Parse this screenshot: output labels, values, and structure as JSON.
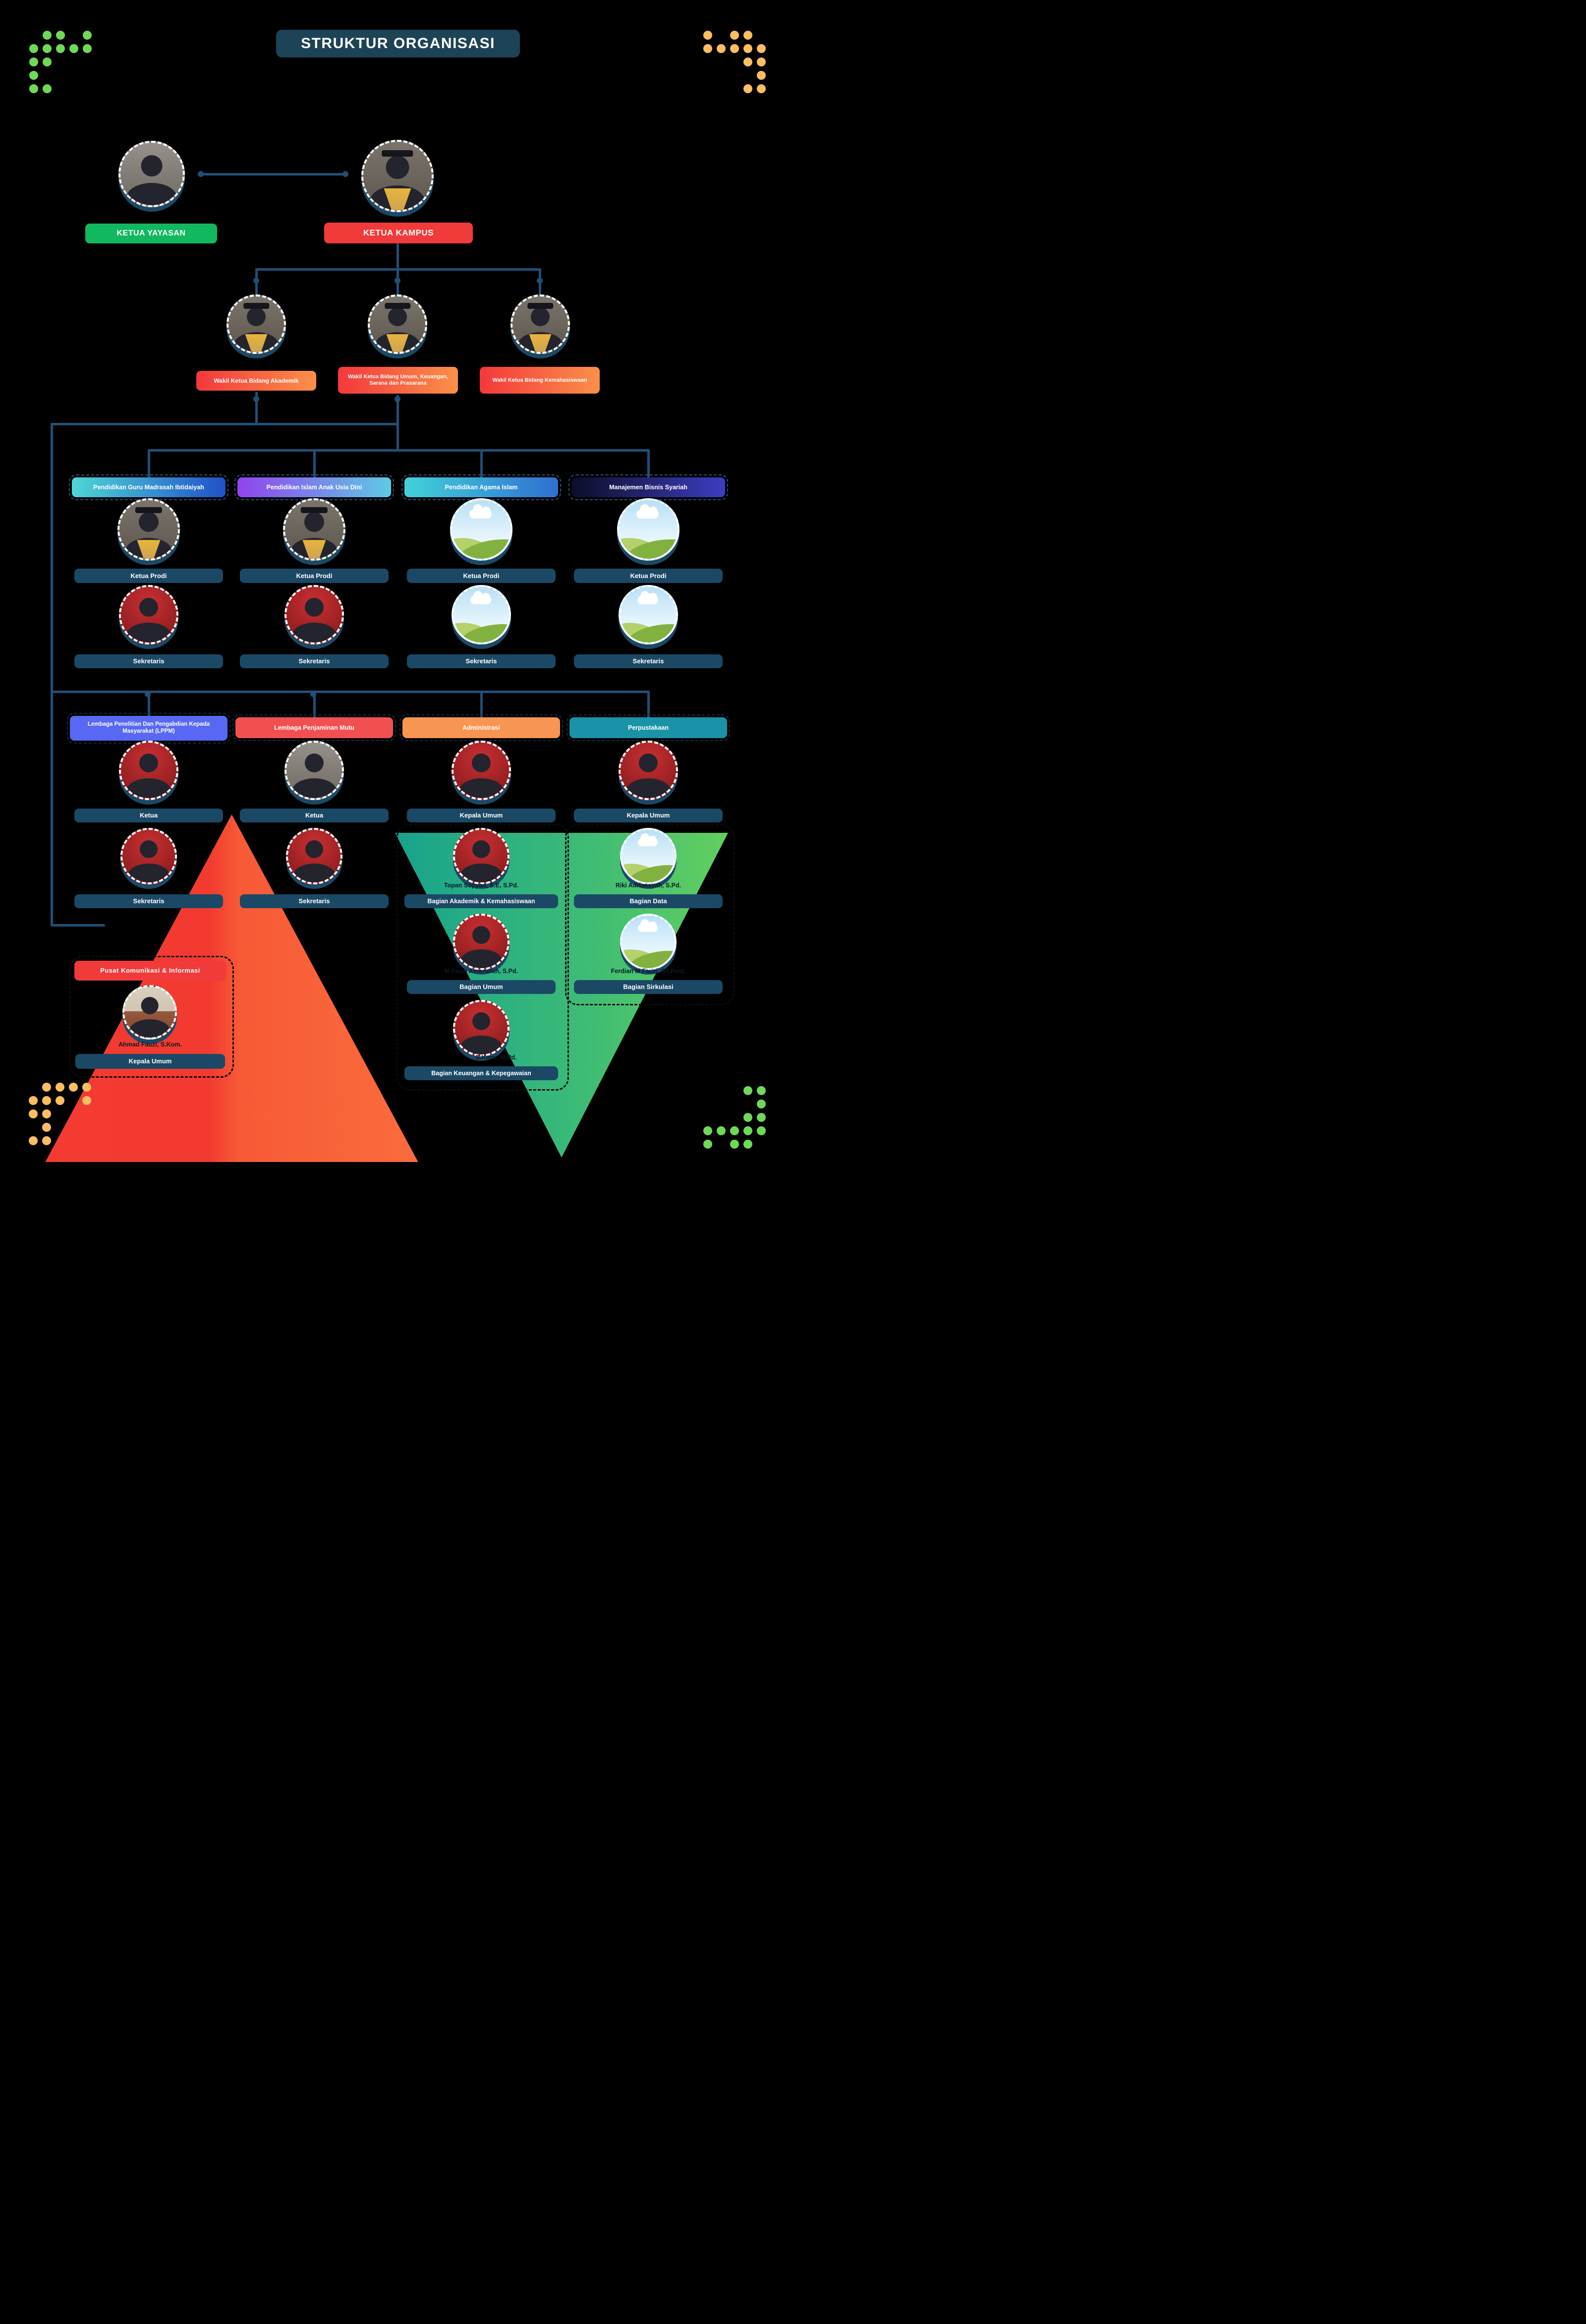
{
  "title": "STRUKTUR ORGANISASI",
  "leadership": {
    "yayasan": "KETUA YAYASAN",
    "kampus": "KETUA KAMPUS"
  },
  "wakil": {
    "akademik": "Wakil Ketua Bidang Akademik",
    "umum": "Wakil Ketua Bidang Umum, Keuangan, Sarana dan Prasarana",
    "kemahasiswaan": "Wakil Ketua Bidang Kemahasiswaan"
  },
  "prodi": [
    {
      "name": "Pendidikan Guru Madrasah Ibtidaiyah",
      "ketua_label": "Ketua Prodi",
      "sekretaris_label": "Sekretaris"
    },
    {
      "name": "Pendidikan Islam Anak Usia Dini",
      "ketua_label": "Ketua Prodi",
      "sekretaris_label": "Sekretaris"
    },
    {
      "name": "Pendidikan Agama Islam",
      "ketua_label": "Ketua Prodi",
      "sekretaris_label": "Sekretaris"
    },
    {
      "name": "Manajemen Bisnis Syariah",
      "ketua_label": "Ketua Prodi",
      "sekretaris_label": "Sekretaris"
    }
  ],
  "units": [
    {
      "name": "Lembaga Penelitian Dan Pengabdian Kepada Masyarakat (LPPM)",
      "head_label": "Ketua",
      "sub_label": "Sekretaris"
    },
    {
      "name": "Lembaga Penjaminan Mutu",
      "head_label": "Ketua",
      "sub_label": "Sekretaris"
    },
    {
      "name": "Administrasi",
      "head_label": "Kepala Umum",
      "staff": [
        {
          "person": "Topan Sopyan, S.E, S.Pd.",
          "unit": "Bagian Akademik & Kemahasiswaan"
        },
        {
          "person": "M Fauzi Amarullah, S.Pd.",
          "unit": "Bagian Umum"
        },
        {
          "person": "S.Kom., M.Pd.",
          "unit": "Bagian Keuangan & Kepegawaian"
        }
      ]
    },
    {
      "name": "Perpustakaan",
      "head_label": "Kepala Umum",
      "staff": [
        {
          "person": "Riki Adriansyah, S.Pd.",
          "unit": "Bagian Data"
        },
        {
          "person": "Ferdian M Fauzi, S.I.Pust.",
          "unit": "Bagian Sirkulasi"
        }
      ]
    }
  ],
  "pusat": {
    "name": "Pusat Komunikasi & Informasi",
    "person": "Ahmad Fauzi, S.Kom.",
    "label": "Kepala Umum"
  },
  "colors": {
    "background": "#000000",
    "navy_pill": "#1b4965",
    "title_bg": "#1d4356",
    "green_pill": "#12b860",
    "red_pill": "#f13a3a",
    "wakil_gradient": [
      "#f4383c",
      "#fa9049"
    ],
    "lppm": "#5868f2",
    "penjaminan": "#f25050",
    "administrasi": "#f79552",
    "perpustakaan": "#1a93a8",
    "connector": "#1d5078",
    "dot_green": "#6fd957",
    "dot_amber": "#fdbd62",
    "triangle_orange": [
      "#f43b31",
      "#fa6c3c"
    ],
    "triangle_green": [
      "#17a38c",
      "#62cf5e"
    ]
  },
  "decor": {
    "dot_groups": [
      {
        "host": "dots-top-left",
        "color": "#6fd957",
        "rows": [
          [
            1,
            2,
            4
          ],
          [
            0,
            1,
            2,
            3,
            4
          ],
          [
            0,
            1
          ],
          [
            0
          ],
          [
            0,
            1
          ]
        ]
      },
      {
        "host": "dots-top-right",
        "color": "#fdbd62",
        "rows": [
          [
            0,
            2,
            3
          ],
          [
            0,
            1,
            2,
            3,
            4
          ],
          [
            3,
            4
          ],
          [
            4
          ],
          [
            3,
            4
          ]
        ]
      },
      {
        "host": "dots-bottom-left",
        "color": "#fdbd62",
        "rows": [
          [
            1,
            2,
            3,
            4
          ],
          [
            0,
            1,
            2,
            4
          ],
          [
            0,
            1
          ],
          [
            1
          ],
          [
            0,
            1
          ]
        ]
      },
      {
        "host": "dots-bottom-right",
        "color": "#6fd957",
        "rows": [
          [
            3,
            4
          ],
          [
            4
          ],
          [
            3,
            4
          ],
          [
            0,
            1,
            2,
            3,
            4
          ],
          [
            0,
            2,
            3
          ]
        ]
      }
    ]
  }
}
